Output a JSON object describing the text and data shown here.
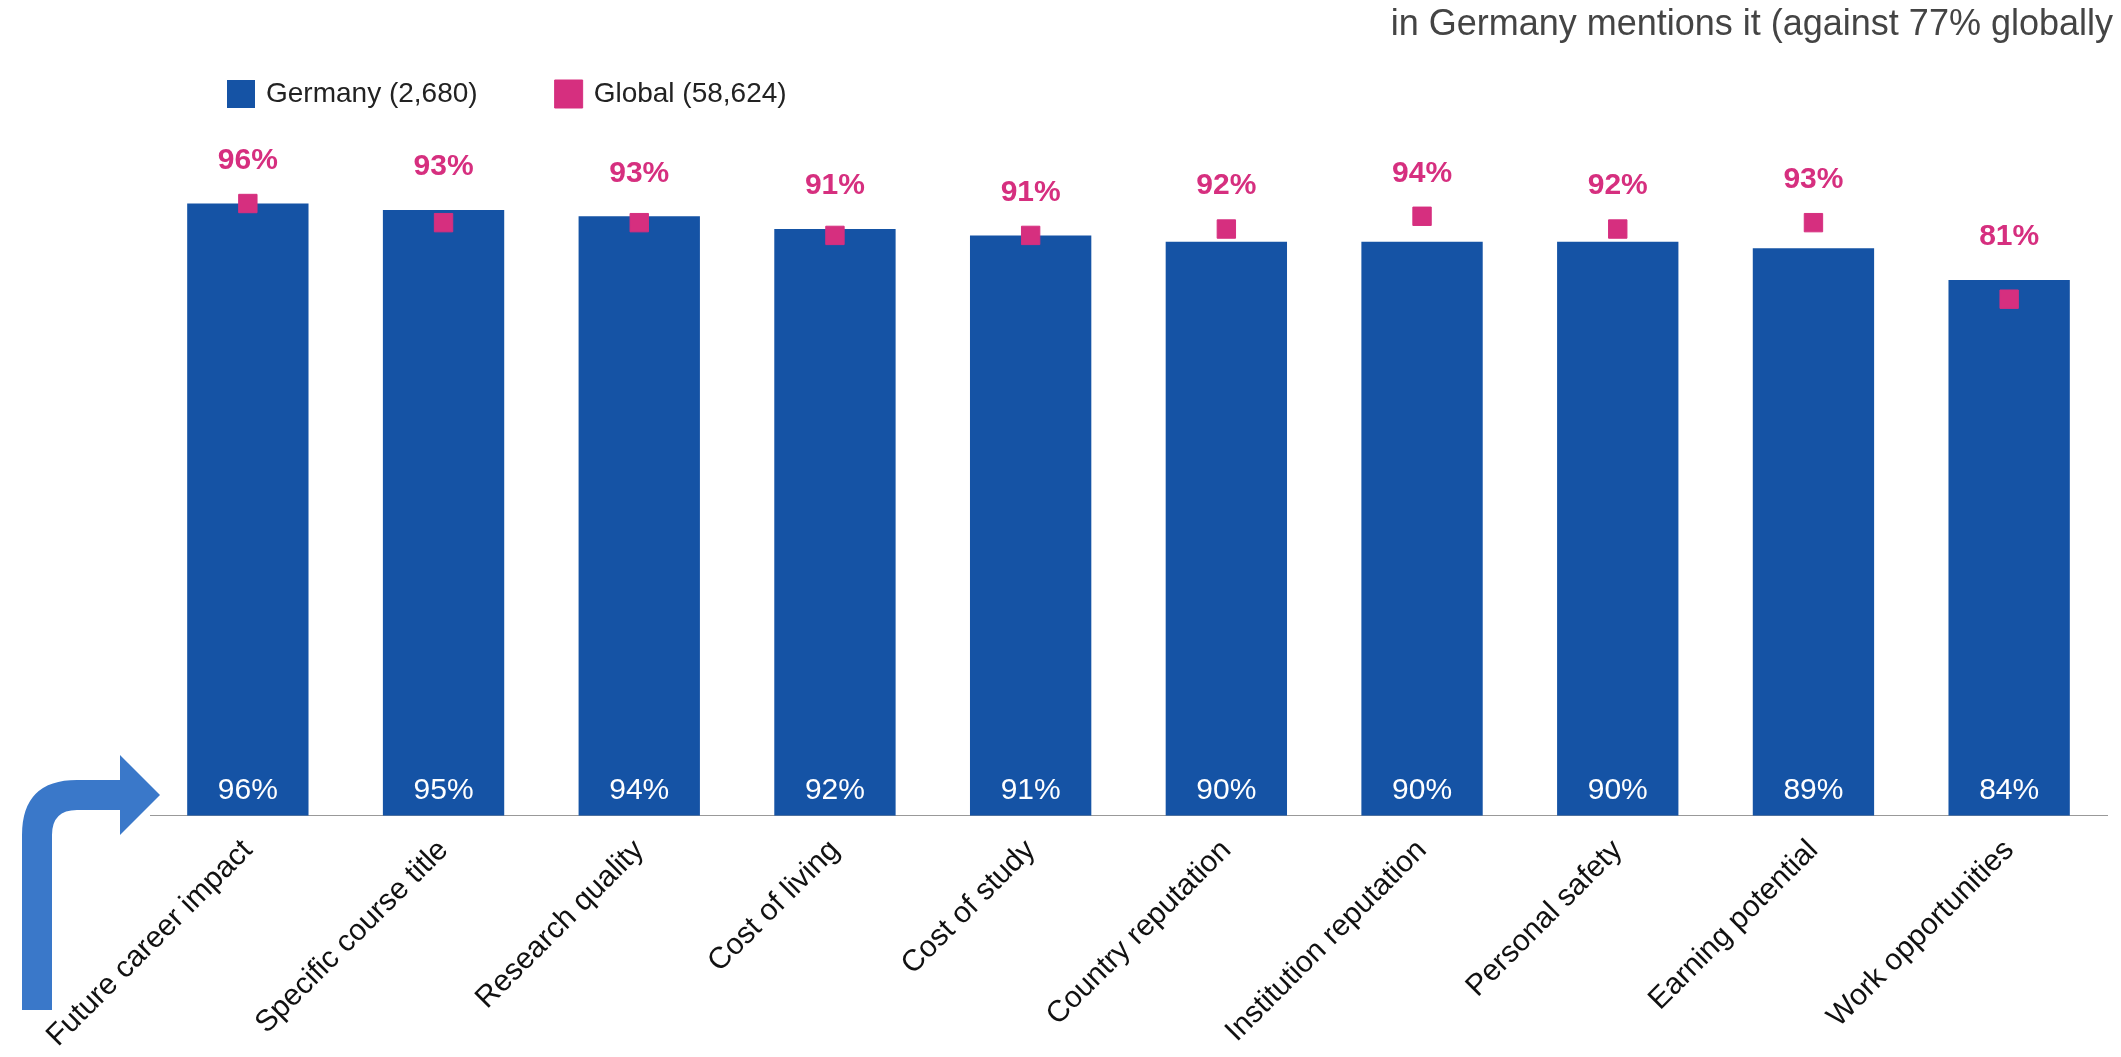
{
  "chart_data": {
    "type": "bar",
    "categories": [
      "Future career impact",
      "Specific course title",
      "Research quality",
      "Cost of living",
      "Cost of study",
      "Country reputation",
      "Institution reputation",
      "Personal safety",
      "Earning potential",
      "Work opportunities"
    ],
    "series": [
      {
        "name": "Germany (2,680)",
        "color": "#1553a5",
        "values": [
          96,
          95,
          94,
          92,
          91,
          90,
          90,
          90,
          89,
          84
        ],
        "value_labels": [
          "96%",
          "95%",
          "94%",
          "92%",
          "91%",
          "90%",
          "90%",
          "90%",
          "89%",
          "84%"
        ]
      },
      {
        "name": "Global (58,624)",
        "type": "scatter",
        "marker": "square",
        "color": "#d62f7f",
        "values": [
          96,
          93,
          93,
          91,
          91,
          92,
          94,
          92,
          93,
          81
        ],
        "value_labels": [
          "96%",
          "93%",
          "93%",
          "91%",
          "91%",
          "92%",
          "94%",
          "92%",
          "93%",
          "81%"
        ]
      }
    ],
    "tick_labels": "x",
    "grid": false,
    "legend": "top left",
    "annotations": [
      "in Germany mentions it (against 77% globally"
    ]
  }
}
